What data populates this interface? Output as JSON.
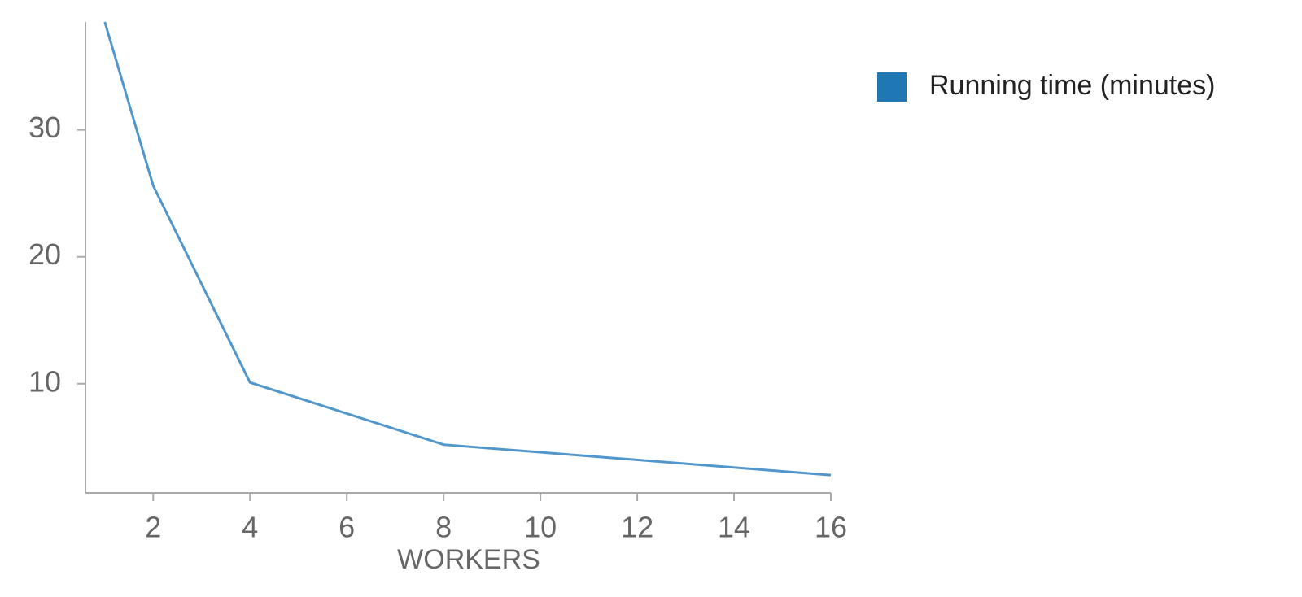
{
  "chart_data": {
    "type": "line",
    "x_label": "WORKERS",
    "x": [
      1,
      2,
      4,
      8,
      16
    ],
    "series": [
      {
        "name": "Running time (minutes)",
        "color": "#1f77b4",
        "values": [
          38.5,
          25.6,
          10.1,
          5.2,
          2.8
        ]
      }
    ],
    "xlim": [
      0.6,
      16
    ],
    "xticks": [
      2,
      4,
      6,
      8,
      10,
      12,
      14,
      16
    ],
    "ylim": [
      1.4,
      38.5
    ],
    "yticks": [
      10,
      20,
      30
    ],
    "legend": "right"
  }
}
